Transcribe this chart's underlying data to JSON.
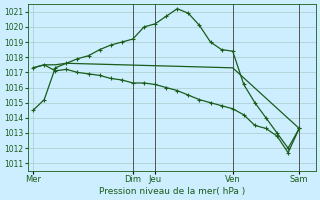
{
  "background_color": "#cceeff",
  "grid_color": "#aacccc",
  "line_color": "#1a5c1a",
  "marker_color": "#1a5c1a",
  "xlabel": "Pression niveau de la mer( hPa )",
  "ylim": [
    1010.5,
    1021.5
  ],
  "yticks": [
    1011,
    1012,
    1013,
    1014,
    1015,
    1016,
    1017,
    1018,
    1019,
    1020,
    1021
  ],
  "x_day_labels": [
    "Mer",
    "Dim",
    "Jeu",
    "Ven",
    "Sam"
  ],
  "x_day_positions": [
    0,
    9,
    11,
    18,
    24
  ],
  "xlim": [
    -0.5,
    25.5
  ],
  "series1_x": [
    0,
    1,
    2,
    3,
    4,
    5,
    6,
    7,
    8,
    9,
    10,
    11,
    12,
    13,
    14,
    15,
    16,
    17,
    18,
    19,
    20,
    21,
    22,
    23,
    24
  ],
  "series1_y": [
    1014.5,
    1015.2,
    1017.3,
    1017.6,
    1017.9,
    1018.1,
    1018.5,
    1018.8,
    1019.0,
    1019.2,
    1020.0,
    1020.2,
    1020.7,
    1021.2,
    1020.9,
    1020.1,
    1019.0,
    1018.5,
    1018.4,
    1016.2,
    1015.0,
    1014.0,
    1013.0,
    1012.0,
    1013.3
  ],
  "series2_x": [
    0,
    1,
    2,
    3,
    18,
    24
  ],
  "series2_y": [
    1017.3,
    1017.5,
    1017.5,
    1017.6,
    1017.3,
    1013.3
  ],
  "series3_x": [
    0,
    1,
    2,
    3,
    4,
    5,
    6,
    7,
    8,
    9,
    10,
    11,
    12,
    13,
    14,
    15,
    16,
    17,
    18,
    19,
    20,
    21,
    22,
    23,
    24
  ],
  "series3_y": [
    1017.3,
    1017.5,
    1017.1,
    1017.2,
    1017.0,
    1016.9,
    1016.8,
    1016.6,
    1016.5,
    1016.3,
    1016.3,
    1016.2,
    1016.0,
    1015.8,
    1015.5,
    1015.2,
    1015.0,
    1014.8,
    1014.6,
    1014.2,
    1013.5,
    1013.3,
    1012.8,
    1011.7,
    1013.3
  ],
  "vline_positions": [
    9,
    11,
    18,
    24
  ],
  "vline_color": "#555555",
  "tick_color": "#1a5c1a",
  "xlabel_fontsize": 6.5,
  "ytick_fontsize": 5.5,
  "xtick_fontsize": 6.0
}
